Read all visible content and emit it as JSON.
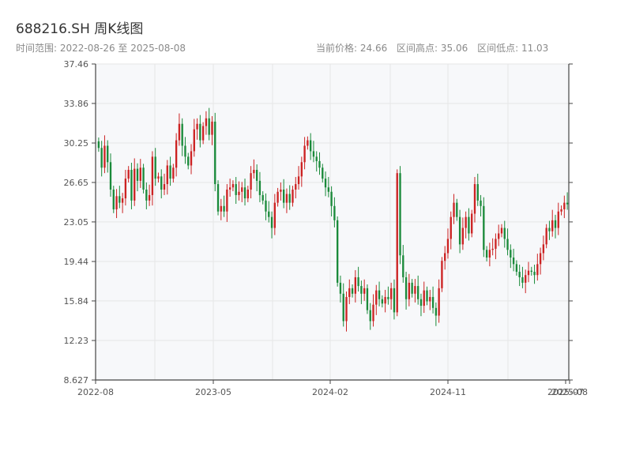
{
  "header": {
    "title": "688216.SH 周K线图",
    "range_label": "时间范围: 2022-08-26 至 2025-08-08",
    "current_price_label": "当前价格: 24.66",
    "high_label": "区间高点: 35.06",
    "low_label": "区间低点: 11.03"
  },
  "colors": {
    "up": "#cc2222",
    "down": "#1a8a3a",
    "grid": "#e6e6e6",
    "plot_bg": "#f7f8fa",
    "axis": "#444444"
  },
  "chart_data": {
    "type": "candlestick",
    "title": "688216.SH 周K线图",
    "xlabel": "",
    "ylabel": "",
    "ylim": [
      8.627,
      37.46
    ],
    "yticks": [
      "37.46",
      "33.86",
      "30.25",
      "26.65",
      "23.05",
      "19.44",
      "15.84",
      "12.23",
      "8.627"
    ],
    "xticks": [
      "2022-08",
      "2023-05",
      "2024-02",
      "2024-11",
      "2025-07",
      "2025-08"
    ],
    "grid": true,
    "weekly_closes": [
      29.8,
      28.0,
      30.0,
      28.5,
      26.0,
      24.2,
      25.4,
      24.8,
      25.2,
      27.0,
      27.8,
      25.0,
      27.9,
      26.8,
      28.0,
      26.0,
      25.0,
      25.5,
      29.0,
      27.0,
      27.2,
      26.0,
      26.5,
      28.2,
      27.0,
      28.0,
      30.5,
      32.0,
      30.0,
      29.0,
      28.2,
      29.5,
      31.5,
      32.0,
      30.5,
      31.8,
      32.5,
      31.0,
      32.2,
      26.5,
      24.0,
      24.5,
      24.0,
      26.0,
      26.2,
      26.5,
      25.5,
      25.8,
      26.2,
      25.2,
      26.0,
      27.5,
      27.8,
      26.8,
      25.5,
      25.0,
      24.0,
      23.5,
      22.5,
      24.8,
      25.8,
      26.0,
      24.8,
      25.6,
      24.8,
      26.0,
      26.5,
      27.2,
      28.5,
      30.0,
      30.5,
      29.5,
      29.0,
      28.6,
      28.0,
      27.0,
      26.2,
      25.8,
      24.5,
      23.2,
      17.5,
      16.5,
      14.0,
      16.2,
      17.0,
      16.5,
      18.0,
      17.2,
      16.5,
      17.0,
      15.0,
      14.0,
      15.5,
      16.8,
      16.0,
      15.6,
      16.2,
      16.0,
      17.0,
      14.8,
      27.5,
      20.0,
      18.0,
      16.0,
      17.5,
      16.5,
      17.2,
      16.0,
      15.4,
      16.8,
      15.8,
      16.2,
      15.2,
      14.5,
      17.0,
      19.5,
      20.2,
      21.5,
      23.5,
      24.8,
      23.5,
      21.0,
      22.5,
      23.5,
      22.0,
      23.8,
      26.5,
      25.0,
      24.5,
      20.5,
      19.8,
      20.5,
      20.6,
      21.5,
      22.0,
      22.5,
      21.5,
      20.5,
      19.8,
      19.2,
      18.5,
      18.0,
      17.5,
      18.2,
      18.6,
      18.5,
      18.2,
      19.2,
      20.2,
      21.0,
      22.5,
      22.2,
      23.2,
      22.5,
      24.0,
      24.2,
      24.8,
      24.66
    ]
  }
}
